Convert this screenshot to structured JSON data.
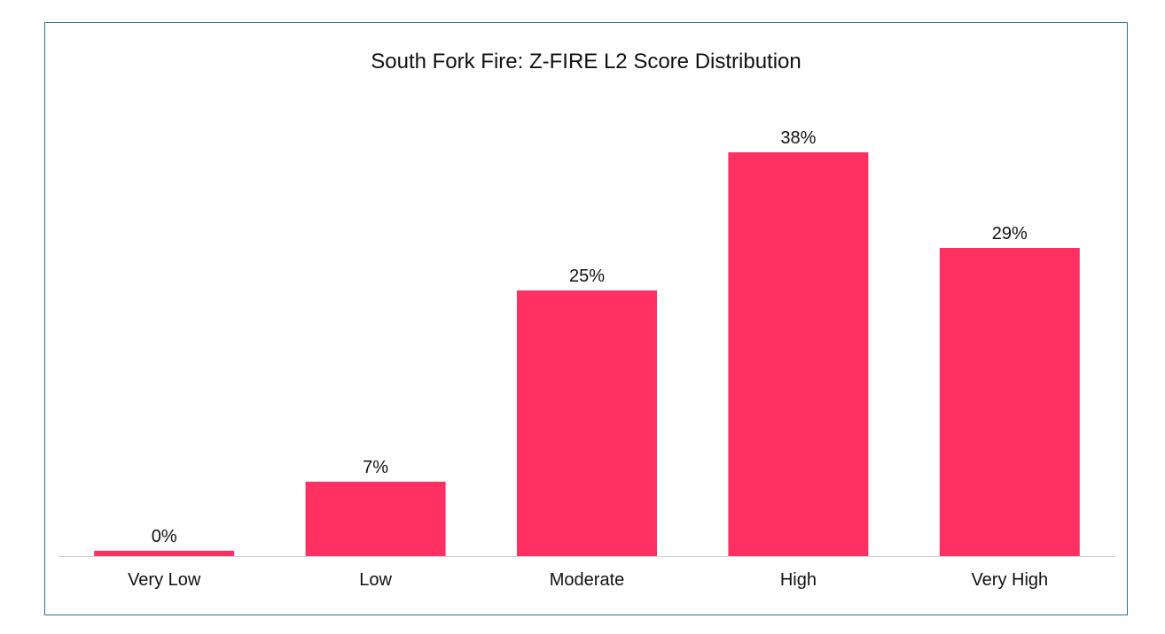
{
  "chart_data": {
    "type": "bar",
    "title": "South Fork Fire: Z-FIRE L2 Score Distribution",
    "categories": [
      "Very Low",
      "Low",
      "Moderate",
      "High",
      "Very High"
    ],
    "values": [
      0.5,
      7,
      25,
      38,
      29
    ],
    "data_labels": [
      "0%",
      "7%",
      "25%",
      "38%",
      "29%"
    ],
    "ylim": [
      0,
      40
    ],
    "xlabel": "",
    "ylabel": "",
    "grid": false,
    "legend": "none",
    "bar_color": "#ff3162",
    "axis_color": "#d0d0d0"
  }
}
